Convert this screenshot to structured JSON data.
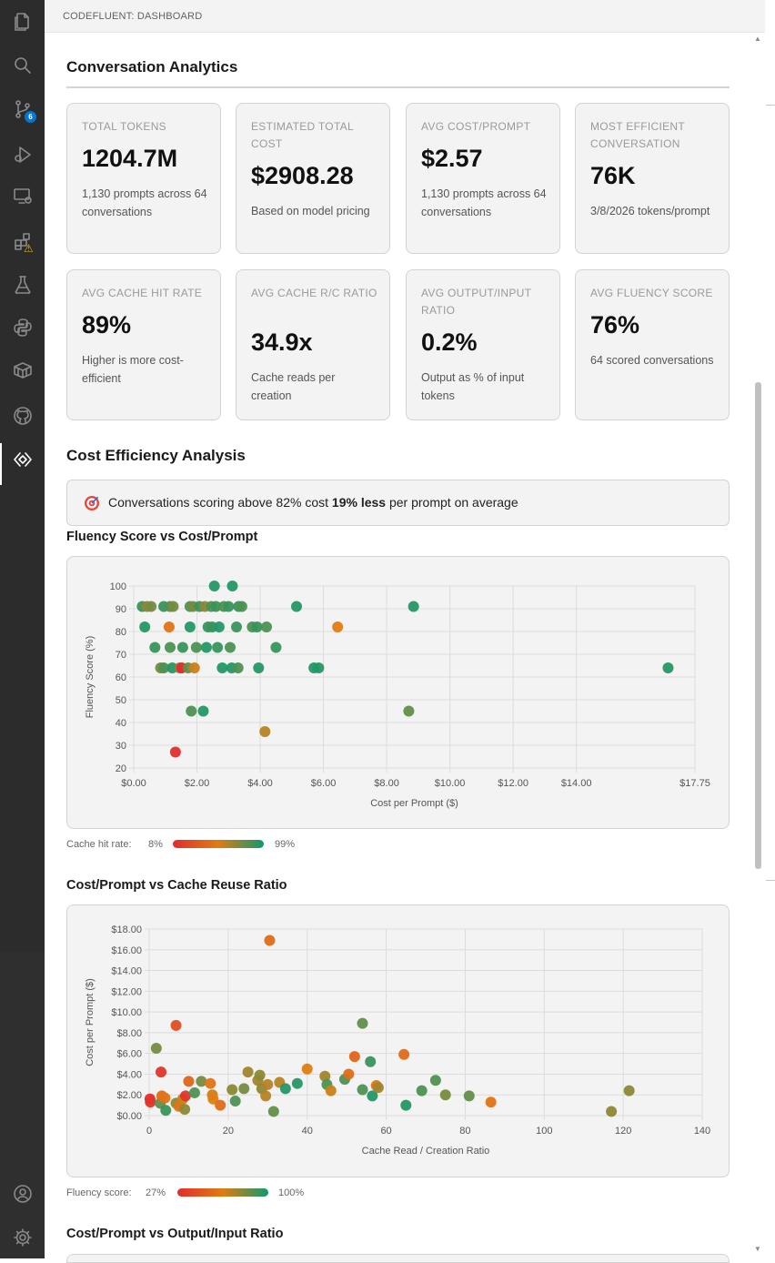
{
  "panel": {
    "title": "CODEFLUENT: DASHBOARD"
  },
  "activity_bar": {
    "items": [
      {
        "name": "explorer-icon"
      },
      {
        "name": "search-icon"
      },
      {
        "name": "source-control-icon",
        "badge": "6"
      },
      {
        "name": "run-debug-icon"
      },
      {
        "name": "remote-explorer-icon"
      },
      {
        "name": "extensions-icon",
        "warning": "⚠"
      },
      {
        "name": "testing-icon"
      },
      {
        "name": "python-icon"
      },
      {
        "name": "containers-icon"
      },
      {
        "name": "github-icon"
      },
      {
        "name": "codefluent-icon",
        "active": true
      },
      {
        "name": "account-icon"
      },
      {
        "name": "settings-gear-icon"
      }
    ]
  },
  "analytics": {
    "title": "Conversation Analytics",
    "cards": [
      {
        "label": "TOTAL TOKENS",
        "value": "1204.7M",
        "sub": "1,130 prompts across 64 conversations"
      },
      {
        "label": "ESTIMATED TOTAL COST",
        "value": "$2908.28",
        "sub": "Based on model pricing"
      },
      {
        "label": "AVG COST/PROMPT",
        "value": "$2.57",
        "sub": "1,130 prompts across 64 conversations"
      },
      {
        "label": "MOST EFFICIENT CONVERSATION",
        "value": "76K",
        "sub": "3/8/2026 tokens/prompt"
      },
      {
        "label": "AVG CACHE HIT RATE",
        "value": "89%",
        "sub": "Higher is more cost-efficient"
      },
      {
        "label": "AVG CACHE R/C RATIO",
        "value": "34.9x",
        "sub": "Cache reads per creation"
      },
      {
        "label": "AVG OUTPUT/INPUT RATIO",
        "value": "0.2%",
        "sub": "Output as % of input tokens"
      },
      {
        "label": "AVG FLUENCY SCORE",
        "value": "76%",
        "sub": "64 scored conversations"
      }
    ]
  },
  "efficiency": {
    "title": "Cost Efficiency Analysis",
    "insight_icon": "target-icon",
    "insight_pre": "Conversations scoring above 82% cost ",
    "insight_bold": "19% less",
    "insight_post": " per prompt on average"
  },
  "chart1_title": "Fluency Score vs Cost/Prompt",
  "chart1_legend": {
    "label": "Cache hit rate:",
    "min": "8%",
    "max": "99%"
  },
  "chart2_title": "Cost/Prompt vs Cache Reuse Ratio",
  "chart2_legend": {
    "label": "Fluency score:",
    "min": "27%",
    "max": "100%"
  },
  "chart3_title": "Cost/Prompt vs Output/Input Ratio",
  "colors": {
    "low": "#e02d2d",
    "mid": "#e07c10",
    "high": "#0e9a6e"
  },
  "chart_data": [
    {
      "type": "scatter",
      "title": "Fluency Score vs Cost/Prompt",
      "xlabel": "Cost per Prompt ($)",
      "ylabel": "Fluency Score (%)",
      "xlim": [
        0,
        17.75
      ],
      "ylim": [
        20,
        100
      ],
      "xticks": [
        0,
        2,
        4,
        6,
        8,
        10,
        12,
        14,
        17.75
      ],
      "xtick_labels": [
        "$0.00",
        "$2.00",
        "$4.00",
        "$6.00",
        "$8.00",
        "$10.00",
        "$12.00",
        "$14.00",
        "$17.75"
      ],
      "yticks": [
        20,
        30,
        40,
        50,
        60,
        70,
        80,
        90,
        100
      ],
      "ytick_labels": [
        "20",
        "30",
        "40",
        "50",
        "60",
        "70",
        "80",
        "90",
        "100"
      ],
      "grid": true,
      "color_scale": "cache hit rate (8%–99%)",
      "points": [
        {
          "x": 0.27,
          "y": 91,
          "c": 0.9
        },
        {
          "x": 0.42,
          "y": 91,
          "c": 0.7
        },
        {
          "x": 0.55,
          "y": 91,
          "c": 0.75
        },
        {
          "x": 0.35,
          "y": 82,
          "c": 0.95
        },
        {
          "x": 0.67,
          "y": 73,
          "c": 0.9
        },
        {
          "x": 0.85,
          "y": 64,
          "c": 0.75
        },
        {
          "x": 0.95,
          "y": 64,
          "c": 0.85
        },
        {
          "x": 0.95,
          "y": 91,
          "c": 0.9
        },
        {
          "x": 1.12,
          "y": 82,
          "c": 0.45
        },
        {
          "x": 1.15,
          "y": 73,
          "c": 0.85
        },
        {
          "x": 1.15,
          "y": 91,
          "c": 0.85
        },
        {
          "x": 1.25,
          "y": 91,
          "c": 0.75
        },
        {
          "x": 1.22,
          "y": 64,
          "c": 0.95
        },
        {
          "x": 1.32,
          "y": 27,
          "c": 0.0
        },
        {
          "x": 1.45,
          "y": 64,
          "c": 0.75
        },
        {
          "x": 1.52,
          "y": 64,
          "c": 0.0
        },
        {
          "x": 1.55,
          "y": 73,
          "c": 0.9
        },
        {
          "x": 1.72,
          "y": 64,
          "c": 0.8
        },
        {
          "x": 1.78,
          "y": 91,
          "c": 0.85
        },
        {
          "x": 1.78,
          "y": 82,
          "c": 0.95
        },
        {
          "x": 1.82,
          "y": 45,
          "c": 0.85
        },
        {
          "x": 1.88,
          "y": 91,
          "c": 0.75
        },
        {
          "x": 1.92,
          "y": 64,
          "c": 0.55
        },
        {
          "x": 1.98,
          "y": 73,
          "c": 0.85
        },
        {
          "x": 2.08,
          "y": 91,
          "c": 0.9
        },
        {
          "x": 2.2,
          "y": 45,
          "c": 0.95
        },
        {
          "x": 2.25,
          "y": 91,
          "c": 0.7
        },
        {
          "x": 2.3,
          "y": 73,
          "c": 0.95
        },
        {
          "x": 2.35,
          "y": 82,
          "c": 0.9
        },
        {
          "x": 2.45,
          "y": 91,
          "c": 0.85
        },
        {
          "x": 2.48,
          "y": 82,
          "c": 0.9
        },
        {
          "x": 2.55,
          "y": 100,
          "c": 0.95
        },
        {
          "x": 2.6,
          "y": 91,
          "c": 0.9
        },
        {
          "x": 2.65,
          "y": 73,
          "c": 0.9
        },
        {
          "x": 2.7,
          "y": 82,
          "c": 0.95
        },
        {
          "x": 2.8,
          "y": 64,
          "c": 0.95
        },
        {
          "x": 2.85,
          "y": 91,
          "c": 0.85
        },
        {
          "x": 3.0,
          "y": 91,
          "c": 0.9
        },
        {
          "x": 3.05,
          "y": 73,
          "c": 0.85
        },
        {
          "x": 3.1,
          "y": 64,
          "c": 0.95
        },
        {
          "x": 3.12,
          "y": 100,
          "c": 0.95
        },
        {
          "x": 3.25,
          "y": 82,
          "c": 0.9
        },
        {
          "x": 3.3,
          "y": 64,
          "c": 0.85
        },
        {
          "x": 3.32,
          "y": 91,
          "c": 0.9
        },
        {
          "x": 3.42,
          "y": 91,
          "c": 0.85
        },
        {
          "x": 3.75,
          "y": 82,
          "c": 0.85
        },
        {
          "x": 3.9,
          "y": 82,
          "c": 0.9
        },
        {
          "x": 3.95,
          "y": 64,
          "c": 0.95
        },
        {
          "x": 4.15,
          "y": 36,
          "c": 0.6
        },
        {
          "x": 4.2,
          "y": 82,
          "c": 0.85
        },
        {
          "x": 4.5,
          "y": 73,
          "c": 0.9
        },
        {
          "x": 5.15,
          "y": 91,
          "c": 0.95
        },
        {
          "x": 5.7,
          "y": 64,
          "c": 0.95
        },
        {
          "x": 5.85,
          "y": 64,
          "c": 0.95
        },
        {
          "x": 6.45,
          "y": 82,
          "c": 0.5
        },
        {
          "x": 8.7,
          "y": 45,
          "c": 0.8
        },
        {
          "x": 8.85,
          "y": 91,
          "c": 0.95
        },
        {
          "x": 16.9,
          "y": 64,
          "c": 0.95
        }
      ]
    },
    {
      "type": "scatter",
      "title": "Cost/Prompt vs Cache Reuse Ratio",
      "xlabel": "Cache Read / Creation Ratio",
      "ylabel": "Cost per Prompt ($)",
      "xlim": [
        0,
        140
      ],
      "ylim": [
        0,
        18
      ],
      "xticks": [
        0,
        20,
        40,
        60,
        80,
        100,
        120,
        140
      ],
      "xtick_labels": [
        "0",
        "20",
        "40",
        "60",
        "80",
        "100",
        "120",
        "140"
      ],
      "yticks": [
        0,
        2,
        4,
        6,
        8,
        10,
        12,
        14,
        16,
        18
      ],
      "ytick_labels": [
        "$0.00",
        "$2.00",
        "$4.00",
        "$6.00",
        "$8.00",
        "$10.00",
        "$12.00",
        "$14.00",
        "$16.00",
        "$18.00"
      ],
      "grid": true,
      "color_scale": "fluency score (27%–100%)",
      "points": [
        {
          "x": 0.2,
          "y": 1.6,
          "c": 0.0
        },
        {
          "x": 0.3,
          "y": 1.3,
          "c": 0.05
        },
        {
          "x": 1.8,
          "y": 6.5,
          "c": 0.75
        },
        {
          "x": 2.8,
          "y": 1.2,
          "c": 0.8
        },
        {
          "x": 3.0,
          "y": 4.2,
          "c": 0.05
        },
        {
          "x": 3.2,
          "y": 1.9,
          "c": 0.4
        },
        {
          "x": 4.0,
          "y": 1.7,
          "c": 0.45
        },
        {
          "x": 4.2,
          "y": 0.5,
          "c": 0.9
        },
        {
          "x": 6.8,
          "y": 8.7,
          "c": 0.2
        },
        {
          "x": 6.8,
          "y": 1.2,
          "c": 0.7
        },
        {
          "x": 7.5,
          "y": 0.9,
          "c": 0.45
        },
        {
          "x": 8.5,
          "y": 1.6,
          "c": 0.55
        },
        {
          "x": 9.0,
          "y": 0.6,
          "c": 0.7
        },
        {
          "x": 9.2,
          "y": 1.9,
          "c": 0.05
        },
        {
          "x": 10.0,
          "y": 3.3,
          "c": 0.35
        },
        {
          "x": 11.5,
          "y": 2.2,
          "c": 0.85
        },
        {
          "x": 13.2,
          "y": 3.3,
          "c": 0.75
        },
        {
          "x": 15.5,
          "y": 3.1,
          "c": 0.45
        },
        {
          "x": 16.0,
          "y": 2.0,
          "c": 0.55
        },
        {
          "x": 16.2,
          "y": 1.6,
          "c": 0.5
        },
        {
          "x": 18.0,
          "y": 1.0,
          "c": 0.4
        },
        {
          "x": 21.0,
          "y": 2.5,
          "c": 0.7
        },
        {
          "x": 21.8,
          "y": 1.4,
          "c": 0.85
        },
        {
          "x": 24.0,
          "y": 2.6,
          "c": 0.75
        },
        {
          "x": 25.0,
          "y": 4.2,
          "c": 0.65
        },
        {
          "x": 27.5,
          "y": 3.4,
          "c": 0.65
        },
        {
          "x": 28.0,
          "y": 3.9,
          "c": 0.7
        },
        {
          "x": 28.5,
          "y": 2.6,
          "c": 0.7
        },
        {
          "x": 29.5,
          "y": 1.9,
          "c": 0.6
        },
        {
          "x": 30.0,
          "y": 3.0,
          "c": 0.6
        },
        {
          "x": 30.5,
          "y": 16.9,
          "c": 0.4
        },
        {
          "x": 31.5,
          "y": 0.4,
          "c": 0.8
        },
        {
          "x": 33.0,
          "y": 3.2,
          "c": 0.6
        },
        {
          "x": 34.5,
          "y": 2.6,
          "c": 0.95
        },
        {
          "x": 37.5,
          "y": 3.1,
          "c": 0.95
        },
        {
          "x": 40.0,
          "y": 4.5,
          "c": 0.5
        },
        {
          "x": 44.5,
          "y": 3.8,
          "c": 0.65
        },
        {
          "x": 45.0,
          "y": 3.0,
          "c": 0.85
        },
        {
          "x": 46.0,
          "y": 2.4,
          "c": 0.55
        },
        {
          "x": 49.5,
          "y": 3.5,
          "c": 0.85
        },
        {
          "x": 50.5,
          "y": 4.0,
          "c": 0.4
        },
        {
          "x": 52.0,
          "y": 5.7,
          "c": 0.35
        },
        {
          "x": 54.0,
          "y": 8.9,
          "c": 0.8
        },
        {
          "x": 54.0,
          "y": 2.5,
          "c": 0.85
        },
        {
          "x": 56.0,
          "y": 5.2,
          "c": 0.9
        },
        {
          "x": 56.5,
          "y": 1.9,
          "c": 0.95
        },
        {
          "x": 57.5,
          "y": 2.9,
          "c": 0.45
        },
        {
          "x": 58.0,
          "y": 2.7,
          "c": 0.65
        },
        {
          "x": 64.5,
          "y": 5.9,
          "c": 0.4
        },
        {
          "x": 65.0,
          "y": 1.0,
          "c": 0.95
        },
        {
          "x": 69.0,
          "y": 2.4,
          "c": 0.85
        },
        {
          "x": 72.5,
          "y": 3.4,
          "c": 0.85
        },
        {
          "x": 75.0,
          "y": 2.0,
          "c": 0.75
        },
        {
          "x": 81.0,
          "y": 1.9,
          "c": 0.8
        },
        {
          "x": 86.5,
          "y": 1.3,
          "c": 0.45
        },
        {
          "x": 117.0,
          "y": 0.4,
          "c": 0.7
        },
        {
          "x": 121.5,
          "y": 2.4,
          "c": 0.7
        }
      ]
    }
  ]
}
